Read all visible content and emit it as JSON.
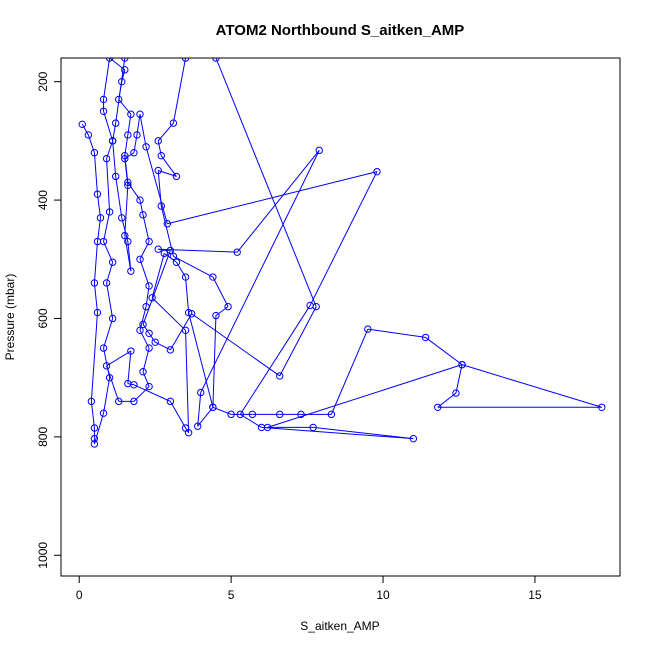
{
  "chart_data": {
    "type": "line",
    "title": "ATOM2 Northbound S_aitken_AMP",
    "xlabel": "S_aitken_AMP",
    "ylabel": "Pressure (mbar)",
    "xlim": [
      -0.6,
      17.8
    ],
    "ylim": [
      1035,
      160
    ],
    "y_reversed": true,
    "grid": false,
    "xticks": [
      0,
      5,
      10,
      15
    ],
    "yticks": [
      200,
      400,
      600,
      800,
      1000
    ],
    "marker": "open-circle",
    "line_color": "#0000ff",
    "series": [
      {
        "values": [
          [
            0.1,
            272
          ],
          [
            0.3,
            290
          ],
          [
            0.5,
            320
          ],
          [
            0.6,
            390
          ],
          [
            0.7,
            430
          ],
          [
            0.6,
            470
          ],
          [
            0.5,
            540
          ],
          [
            0.6,
            590
          ],
          [
            0.4,
            740
          ],
          [
            0.5,
            785
          ],
          [
            0.5,
            803
          ],
          [
            0.5,
            812
          ],
          [
            0.8,
            760
          ],
          [
            1.0,
            700
          ],
          [
            0.8,
            650
          ],
          [
            1.1,
            600
          ],
          [
            0.9,
            540
          ],
          [
            1.1,
            505
          ],
          [
            0.8,
            470
          ],
          [
            1.0,
            420
          ],
          [
            0.9,
            330
          ],
          [
            1.1,
            300
          ],
          [
            0.8,
            250
          ],
          [
            0.8,
            230
          ],
          [
            1.0,
            160
          ],
          [
            1.5,
            180
          ],
          [
            1.4,
            200
          ],
          [
            1.3,
            230
          ],
          [
            1.7,
            255
          ],
          [
            1.6,
            290
          ],
          [
            1.5,
            325
          ],
          [
            1.6,
            370
          ],
          [
            2.0,
            400
          ],
          [
            2.1,
            425
          ],
          [
            2.3,
            470
          ],
          [
            2.0,
            500
          ],
          [
            2.3,
            545
          ],
          [
            2.2,
            580
          ],
          [
            2.0,
            620
          ],
          [
            2.3,
            650
          ],
          [
            2.1,
            690
          ],
          [
            2.3,
            715
          ],
          [
            1.8,
            740
          ],
          [
            1.3,
            740
          ],
          [
            0.9,
            680
          ],
          [
            1.7,
            655
          ],
          [
            1.6,
            710
          ],
          [
            1.8,
            712
          ],
          [
            3.0,
            740
          ],
          [
            3.5,
            785
          ],
          [
            3.6,
            793
          ],
          [
            3.5,
            620
          ],
          [
            2.4,
            565
          ],
          [
            2.8,
            490
          ],
          [
            3.2,
            505
          ],
          [
            3.5,
            530
          ],
          [
            3.6,
            590
          ],
          [
            4.4,
            750
          ],
          [
            4.5,
            595
          ],
          [
            4.9,
            580
          ],
          [
            4.4,
            530
          ],
          [
            3.1,
            495
          ],
          [
            2.7,
            410
          ],
          [
            2.6,
            350
          ],
          [
            3.2,
            360
          ],
          [
            2.7,
            325
          ],
          [
            2.6,
            300
          ],
          [
            3.1,
            270
          ],
          [
            3.5,
            160
          ],
          [
            4.5,
            160
          ],
          [
            7.8,
            580
          ],
          [
            6.6,
            697
          ],
          [
            3.7,
            592
          ],
          [
            3.0,
            653
          ],
          [
            2.5,
            640
          ],
          [
            2.3,
            625
          ],
          [
            2.1,
            610
          ],
          [
            3.0,
            485
          ],
          [
            2.6,
            483
          ],
          [
            5.2,
            488
          ],
          [
            7.9,
            316
          ],
          [
            4.0,
            725
          ],
          [
            3.9,
            782
          ],
          [
            4.4,
            750
          ],
          [
            5.0,
            762
          ],
          [
            5.7,
            762
          ],
          [
            6.6,
            762
          ],
          [
            7.3,
            762
          ],
          [
            8.3,
            762
          ],
          [
            9.5,
            618
          ],
          [
            11.4,
            632
          ],
          [
            12.6,
            678
          ],
          [
            12.4,
            726
          ],
          [
            11.8,
            750
          ],
          [
            17.2,
            750
          ],
          [
            12.6,
            678
          ],
          [
            6.2,
            784
          ],
          [
            7.7,
            784
          ],
          [
            11.0,
            803
          ],
          [
            6.0,
            784
          ],
          [
            5.3,
            762
          ],
          [
            7.6,
            578
          ],
          [
            9.8,
            352
          ],
          [
            2.9,
            440
          ],
          [
            2.2,
            310
          ],
          [
            2.0,
            255
          ],
          [
            1.9,
            290
          ],
          [
            1.8,
            320
          ],
          [
            1.5,
            330
          ],
          [
            1.6,
            375
          ],
          [
            1.5,
            460
          ],
          [
            1.7,
            520
          ],
          [
            1.6,
            470
          ],
          [
            1.4,
            430
          ],
          [
            1.2,
            360
          ],
          [
            1.1,
            300
          ],
          [
            1.2,
            270
          ],
          [
            1.5,
            160
          ]
        ]
      }
    ]
  }
}
